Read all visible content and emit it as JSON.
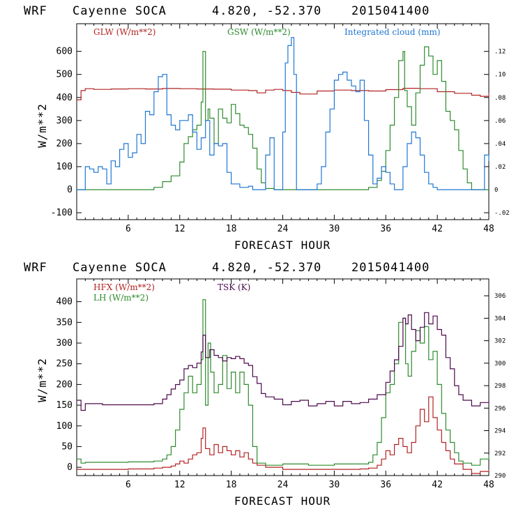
{
  "chart_data": [
    {
      "type": "line",
      "header": {
        "model": "WRF",
        "site": "Cayenne SOCA",
        "coords": "4.820, -52.370",
        "run": "2015041400"
      },
      "xlabel": "FORECAST HOUR",
      "ylabel": "W/m**2",
      "xlim": [
        0,
        48
      ],
      "ylim": [
        -130,
        720
      ],
      "xticks": [
        6,
        12,
        18,
        24,
        30,
        36,
        42,
        48
      ],
      "yticks_left": [
        -100,
        0,
        100,
        200,
        300,
        400,
        500,
        600
      ],
      "right_axis": {
        "ylim": [
          -0.026,
          0.144
        ],
        "ticks": [
          -0.02,
          0,
          0.02,
          0.04,
          0.06,
          0.08,
          0.1,
          0.12
        ],
        "labels": [
          "-.02",
          "0",
          ".02",
          ".04",
          ".06",
          ".08",
          ".10",
          ".12"
        ]
      },
      "series": [
        {
          "name": "GLW (W/m**2)",
          "color": "#b22222",
          "axis": "left",
          "x": [
            0,
            0.5,
            1,
            2,
            4,
            6,
            8,
            10,
            12,
            14,
            16,
            18,
            20,
            21,
            22,
            23,
            24,
            25,
            26,
            28,
            30,
            32,
            34,
            36,
            38,
            40,
            42,
            44,
            46,
            47,
            48
          ],
          "y": [
            390,
            430,
            438,
            435,
            437,
            438,
            437,
            439,
            438,
            437,
            436,
            432,
            430,
            420,
            432,
            435,
            430,
            422,
            415,
            428,
            432,
            430,
            428,
            434,
            440,
            438,
            425,
            418,
            410,
            405,
            420
          ]
        },
        {
          "name": "GSW (W/m**2)",
          "color": "#2e8b2e",
          "axis": "left",
          "x": [
            0,
            6,
            8.5,
            9,
            10,
            11,
            12,
            12.5,
            13,
            13.5,
            14,
            14.5,
            14.7,
            15,
            15.3,
            15.5,
            16,
            16.5,
            17,
            17.5,
            18,
            18.5,
            19,
            19.5,
            20,
            20.5,
            21,
            21.5,
            22,
            23,
            24,
            30,
            33,
            34,
            35,
            35.5,
            36,
            36.5,
            37,
            37.5,
            38,
            38.2,
            38.5,
            39,
            39.5,
            40,
            40.5,
            41,
            41.5,
            42,
            42.5,
            43,
            43.5,
            44,
            44.5,
            45,
            45.5,
            46,
            47,
            48
          ],
          "y": [
            0,
            0,
            0,
            10,
            35,
            60,
            120,
            200,
            230,
            260,
            280,
            380,
            600,
            300,
            350,
            310,
            200,
            350,
            310,
            290,
            370,
            330,
            280,
            270,
            240,
            180,
            90,
            30,
            5,
            0,
            0,
            0,
            0,
            10,
            40,
            80,
            170,
            280,
            400,
            560,
            600,
            430,
            360,
            280,
            420,
            540,
            620,
            580,
            500,
            560,
            470,
            340,
            300,
            260,
            170,
            90,
            30,
            0,
            0,
            0
          ]
        },
        {
          "name": "Integrated cloud (mm)",
          "color": "#1f77d4",
          "axis": "right",
          "x": [
            0,
            0.7,
            1,
            1.5,
            2,
            2.5,
            3,
            3.5,
            4,
            4.5,
            5,
            5.5,
            6,
            6.5,
            7,
            7.5,
            8,
            8.5,
            9,
            9.5,
            10,
            10.5,
            11,
            11.5,
            12,
            12.5,
            13,
            13.5,
            14,
            14.5,
            15,
            15.5,
            16,
            16.5,
            17,
            17.5,
            18,
            18.5,
            19,
            19.5,
            20,
            20.5,
            21,
            21.5,
            22,
            22.5,
            23,
            23.5,
            24,
            24.3,
            24.6,
            25,
            25.3,
            25.6,
            26,
            26.5,
            27,
            27.5,
            28,
            28.5,
            29,
            29.5,
            30,
            30.5,
            31,
            31.5,
            32,
            32.5,
            33,
            33.5,
            34,
            34.5,
            35,
            35.5,
            36,
            36.5,
            37,
            37.5,
            38,
            38.5,
            39,
            39.5,
            40,
            40.5,
            41,
            41.5,
            42,
            42.5,
            43,
            43.5,
            44,
            44.5,
            45,
            45.5,
            46,
            46.5,
            47,
            47.5,
            48
          ],
          "y": [
            0,
            0,
            0.02,
            0.018,
            0.015,
            0.02,
            0.018,
            0.005,
            0.025,
            0.02,
            0.035,
            0.04,
            0.028,
            0.032,
            0.048,
            0.04,
            0.068,
            0.065,
            0.085,
            0.098,
            0.1,
            0.065,
            0.056,
            0.052,
            0.06,
            0.06,
            0.065,
            0.05,
            0.035,
            0.045,
            0.06,
            0.03,
            0.04,
            0.038,
            0.04,
            0.015,
            0.005,
            0.005,
            0.002,
            0.002,
            0.003,
            0,
            0,
            0,
            0.03,
            0.045,
            0,
            0,
            0.05,
            0.11,
            0.125,
            0.132,
            0.1,
            0,
            0,
            0,
            0,
            0,
            0.005,
            0.02,
            0.05,
            0.07,
            0.095,
            0.1,
            0.102,
            0.095,
            0.09,
            0.085,
            0.095,
            0.06,
            0.03,
            0.005,
            0.01,
            0.02,
            0.015,
            0.005,
            0,
            0,
            0.02,
            0.04,
            0.05,
            0.045,
            0.03,
            0.015,
            0.005,
            0.002,
            0,
            0,
            0,
            0,
            0,
            0,
            0,
            0,
            0,
            0,
            0,
            0.03,
            0.025
          ]
        }
      ]
    },
    {
      "type": "line",
      "header": {
        "model": "WRF",
        "site": "Cayenne SOCA",
        "coords": "4.820, -52.370",
        "run": "2015041400"
      },
      "xlabel": "FORECAST HOUR",
      "ylabel": "W/m**2",
      "xlim": [
        0,
        48
      ],
      "ylim": [
        -20,
        455
      ],
      "xticks": [
        6,
        12,
        18,
        24,
        30,
        36,
        42,
        48
      ],
      "yticks_left": [
        0,
        50,
        100,
        150,
        200,
        250,
        300,
        350,
        400
      ],
      "right_axis": {
        "ylim": [
          290,
          307.5
        ],
        "ticks": [
          290,
          292,
          294,
          296,
          298,
          300,
          302,
          304,
          306
        ],
        "labels": [
          "290",
          "292",
          "294",
          "296",
          "298",
          "300",
          "302",
          "304",
          "306"
        ]
      },
      "series": [
        {
          "name": "HFX (W/m**2)",
          "color": "#b22222",
          "axis": "left",
          "x": [
            0,
            3,
            6,
            9,
            10,
            11,
            11.5,
            12,
            12.5,
            13,
            13.5,
            14,
            14.5,
            14.7,
            15,
            15.5,
            16,
            16.5,
            17,
            17.5,
            18,
            18.5,
            19,
            19.5,
            20,
            20.5,
            21,
            22,
            24,
            27,
            30,
            33,
            34,
            35,
            35.5,
            36,
            36.5,
            37,
            37.5,
            38,
            38.5,
            39,
            39.5,
            40,
            40.5,
            41,
            41.5,
            42,
            42.5,
            43,
            43.5,
            44,
            45,
            46,
            47,
            48
          ],
          "y": [
            -5,
            -5,
            -4,
            -2,
            0,
            3,
            8,
            15,
            10,
            20,
            30,
            35,
            70,
            95,
            45,
            30,
            55,
            35,
            50,
            40,
            30,
            40,
            25,
            35,
            20,
            10,
            5,
            0,
            -5,
            -5,
            -5,
            -4,
            -2,
            5,
            20,
            40,
            30,
            55,
            70,
            50,
            35,
            60,
            100,
            140,
            110,
            170,
            120,
            90,
            60,
            40,
            20,
            8,
            -5,
            -15,
            -10,
            -5
          ]
        },
        {
          "name": "LH (W/m**2)",
          "color": "#2e8b2e",
          "axis": "left",
          "x": [
            0,
            0.5,
            1,
            3,
            6,
            9,
            10,
            10.5,
            11,
            11.5,
            12,
            12.5,
            13,
            13.5,
            14,
            14.5,
            14.7,
            15,
            15.3,
            15.6,
            16,
            16.5,
            17,
            17.5,
            18,
            18.5,
            19,
            19.5,
            20,
            20.5,
            21,
            22,
            24,
            27,
            30,
            33,
            34,
            34.5,
            35,
            35.5,
            36,
            36.5,
            37,
            37.5,
            38,
            38.3,
            38.6,
            39,
            39.5,
            40,
            40.5,
            41,
            41.5,
            42,
            42.5,
            43,
            43.5,
            44,
            44.5,
            45,
            46,
            47,
            48
          ],
          "y": [
            20,
            10,
            12,
            12,
            13,
            15,
            20,
            30,
            50,
            90,
            140,
            180,
            220,
            180,
            200,
            260,
            405,
            150,
            300,
            230,
            180,
            200,
            270,
            190,
            230,
            180,
            230,
            200,
            150,
            50,
            10,
            5,
            8,
            5,
            8,
            8,
            12,
            30,
            60,
            120,
            180,
            200,
            250,
            350,
            360,
            250,
            220,
            280,
            330,
            300,
            340,
            260,
            280,
            200,
            130,
            90,
            60,
            35,
            15,
            10,
            5,
            20,
            30
          ]
        },
        {
          "name": "TSK (K)",
          "color": "#4b0a4b",
          "axis": "right",
          "x": [
            0,
            0.5,
            1,
            3,
            6,
            8,
            9,
            10,
            10.5,
            11,
            11.5,
            12,
            12.5,
            13,
            13.5,
            14,
            14.5,
            14.7,
            15,
            15.5,
            16,
            16.5,
            17,
            17.5,
            18,
            18.5,
            19,
            19.5,
            20,
            20.5,
            21,
            21.5,
            22,
            23,
            24,
            25,
            26,
            27,
            28,
            29,
            30,
            31,
            32,
            33,
            34,
            35,
            36,
            36.5,
            37,
            37.5,
            38,
            38.3,
            38.6,
            39,
            39.5,
            40,
            40.5,
            41,
            41.5,
            42,
            42.5,
            43,
            43.5,
            44,
            44.5,
            45,
            46,
            47,
            48
          ],
          "y": [
            296.7,
            295.8,
            296.4,
            296.3,
            296.3,
            296.3,
            296.4,
            296.8,
            297.2,
            297.7,
            298.1,
            298.5,
            299.5,
            299.8,
            299.6,
            300,
            301,
            302.5,
            300.5,
            301.2,
            300.7,
            300.5,
            300.2,
            300.5,
            300.4,
            300.6,
            300.4,
            300,
            299.8,
            298.8,
            298.2,
            297.3,
            297,
            296.8,
            296.3,
            296.6,
            296.7,
            296.2,
            296.4,
            296.6,
            296.2,
            296.6,
            296.4,
            296.5,
            296.8,
            297.2,
            298.3,
            299.3,
            300.3,
            301.5,
            304,
            303.5,
            304.3,
            303,
            302,
            303.2,
            304.5,
            303.5,
            304.2,
            303,
            302.5,
            300.5,
            299.5,
            298,
            297.2,
            296.7,
            296.2,
            296.5,
            296.8
          ]
        }
      ]
    }
  ]
}
